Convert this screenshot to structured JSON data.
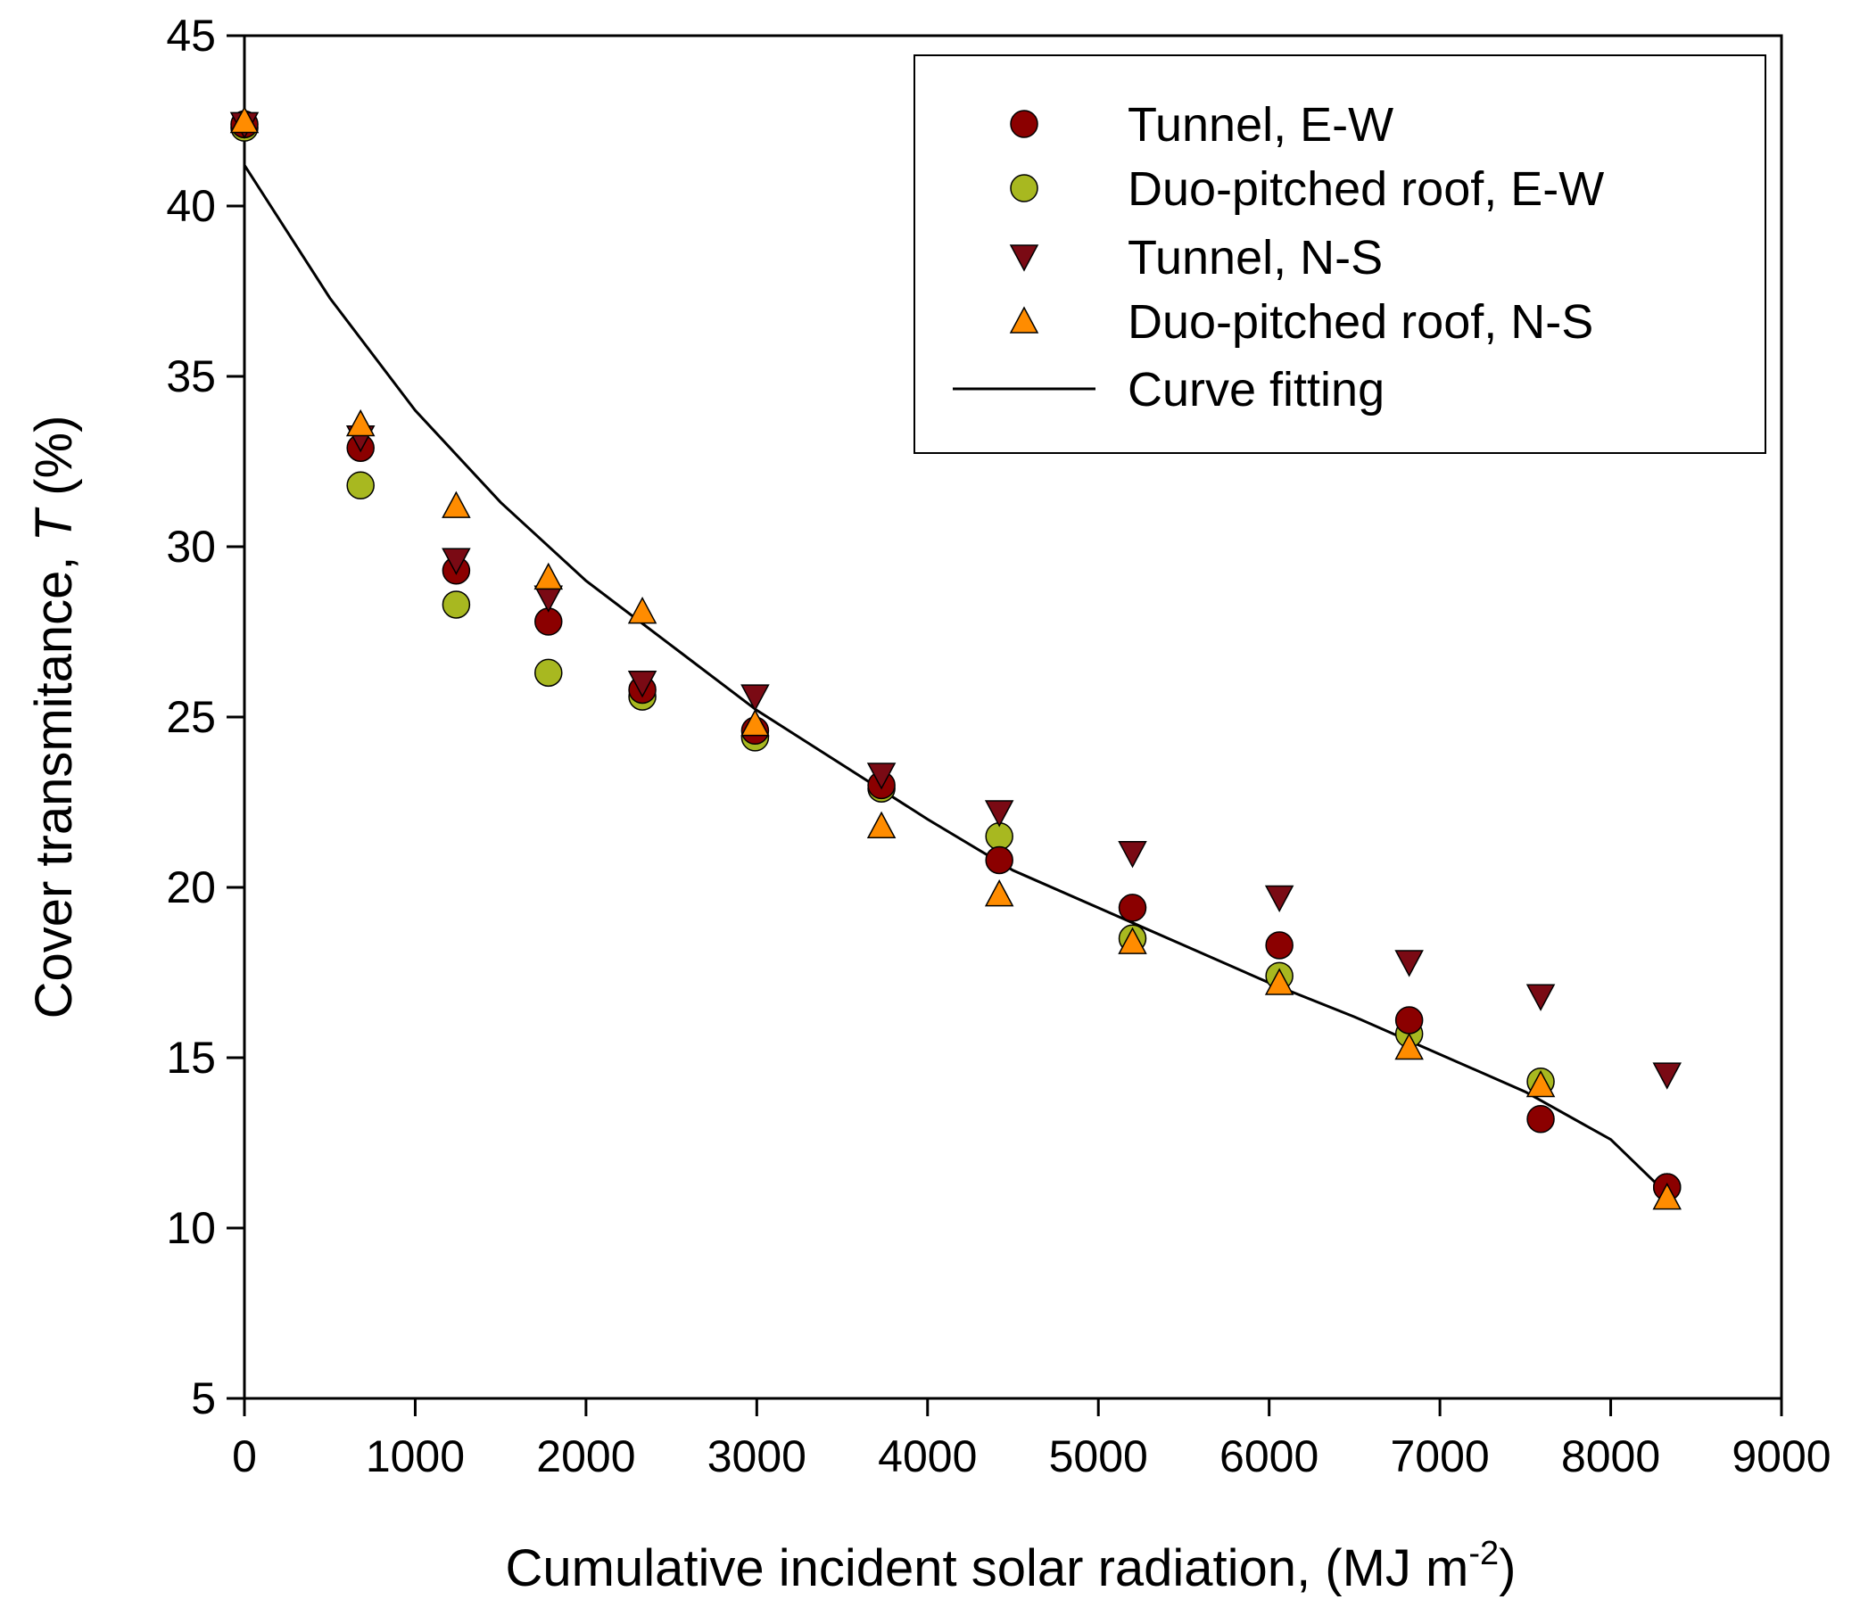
{
  "chart_data": {
    "type": "scatter",
    "title": "",
    "xlabel": "Cumulative incident solar radiation, (MJ m",
    "xlabel_sup": "-2",
    "xlabel_end": ")",
    "ylabel": "Cover transmitance, ",
    "ylabel_italic": "T",
    "ylabel_end": " (%)",
    "xlim": [
      0,
      9000
    ],
    "ylim": [
      5,
      45
    ],
    "xticks": [
      0,
      1000,
      2000,
      3000,
      4000,
      5000,
      6000,
      7000,
      8000,
      9000
    ],
    "yticks": [
      5,
      10,
      15,
      20,
      25,
      30,
      35,
      40,
      45
    ],
    "legend_position": "top-right",
    "series": [
      {
        "name": "Tunnel, E-W",
        "marker": "circle",
        "color": "#8b0000",
        "x": [
          0,
          680,
          1240,
          1780,
          2330,
          2990,
          3730,
          4420,
          5200,
          6060,
          6820,
          7590,
          8330
        ],
        "y": [
          42.4,
          32.9,
          29.3,
          27.8,
          25.8,
          24.6,
          23.0,
          20.8,
          19.4,
          18.3,
          16.1,
          13.2,
          11.2
        ]
      },
      {
        "name": "Duo-pitched roof, E-W",
        "marker": "circle",
        "color": "#a8b820",
        "x": [
          0,
          680,
          1240,
          1780,
          2330,
          2990,
          3730,
          4420,
          5200,
          6060,
          6820,
          7590,
          8330
        ],
        "y": [
          42.3,
          31.8,
          28.3,
          26.3,
          25.6,
          24.4,
          22.9,
          21.5,
          18.5,
          17.4,
          15.7,
          14.3,
          11.2
        ]
      },
      {
        "name": "Tunnel, N-S",
        "marker": "triangle-down",
        "color": "#7a0a14",
        "x": [
          0,
          680,
          1240,
          1780,
          2330,
          2990,
          3730,
          4420,
          5200,
          6060,
          6820,
          7590,
          8330
        ],
        "y": [
          42.4,
          33.2,
          29.6,
          28.5,
          26.0,
          25.6,
          23.3,
          22.2,
          21.0,
          19.7,
          17.8,
          16.8,
          14.5
        ]
      },
      {
        "name": "Duo-pitched roof, N-S",
        "marker": "triangle-up",
        "color": "#ff8c00",
        "x": [
          0,
          680,
          1240,
          1780,
          2330,
          2990,
          3730,
          4420,
          5200,
          6060,
          6820,
          7590,
          8330
        ],
        "y": [
          42.5,
          33.6,
          31.2,
          29.1,
          28.1,
          24.8,
          21.8,
          19.8,
          18.4,
          17.2,
          15.3,
          14.2,
          10.9
        ]
      }
    ],
    "fit": {
      "name": "Curve fitting",
      "color": "#000000",
      "x": [
        0,
        500,
        1000,
        1500,
        2000,
        2500,
        3000,
        3500,
        4000,
        4500,
        5000,
        5500,
        6000,
        6500,
        7000,
        7500,
        8000,
        8330
      ],
      "y": [
        41.2,
        37.3,
        34.0,
        31.3,
        29.0,
        27.1,
        25.2,
        23.6,
        22.0,
        20.5,
        19.4,
        18.3,
        17.2,
        16.2,
        15.1,
        14.0,
        12.6,
        11.0
      ]
    }
  }
}
